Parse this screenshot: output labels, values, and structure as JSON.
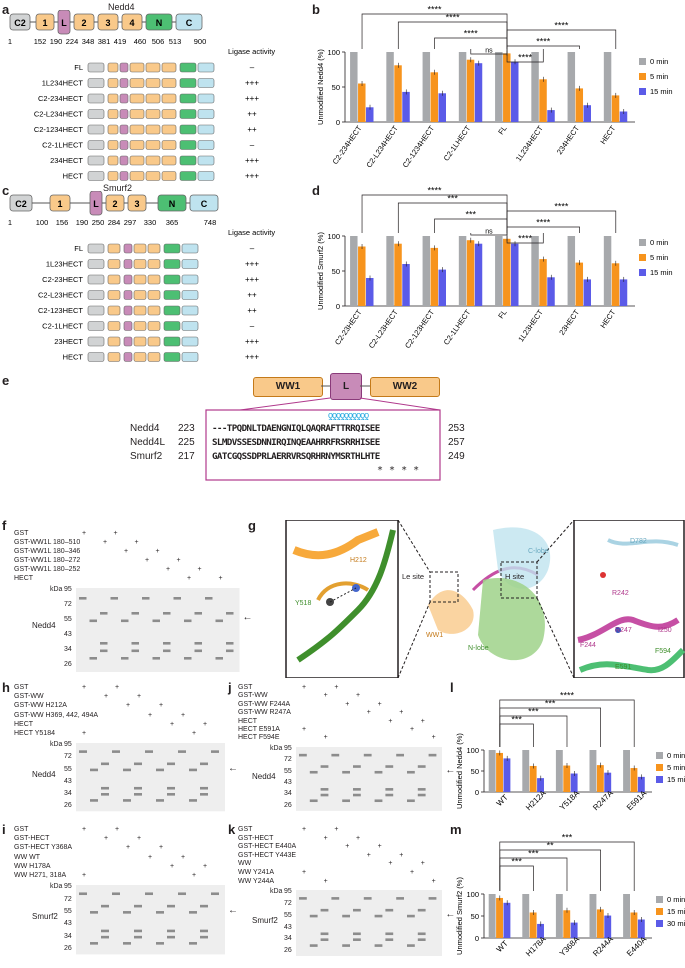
{
  "panels": {
    "a": {
      "letter": "a",
      "title": "Nedd4",
      "domains": [
        "C2",
        "1",
        "L",
        "2",
        "3",
        "4",
        "N",
        "C"
      ],
      "ticks": [
        "1",
        "152",
        "190",
        "224",
        "348",
        "381",
        "419",
        "460",
        "506",
        "513",
        "900"
      ],
      "activity_header": "Ligase activity",
      "constructs": [
        {
          "name": "FL",
          "activity": "–"
        },
        {
          "name": "1L234HECT",
          "activity": "+++"
        },
        {
          "name": "C2-234HECT",
          "activity": "+++"
        },
        {
          "name": "C2-L234HECT",
          "activity": "++"
        },
        {
          "name": "C2-1234HECT",
          "activity": "++"
        },
        {
          "name": "C2-1LHECT",
          "activity": "–"
        },
        {
          "name": "234HECT",
          "activity": "+++"
        },
        {
          "name": "HECT",
          "activity": "+++"
        }
      ]
    },
    "c": {
      "letter": "c",
      "title": "Smurf2",
      "domains": [
        "C2",
        "1",
        "L",
        "2",
        "3",
        "N",
        "C"
      ],
      "ticks": [
        "1",
        "100",
        "156",
        "190",
        "250",
        "284",
        "297",
        "330",
        "365",
        "748"
      ],
      "activity_header": "Ligase activity",
      "constructs": [
        {
          "name": "FL",
          "activity": "–"
        },
        {
          "name": "1L23HECT",
          "activity": "+++"
        },
        {
          "name": "C2-23HECT",
          "activity": "+++"
        },
        {
          "name": "C2-L23HECT",
          "activity": "++"
        },
        {
          "name": "C2-123HECT",
          "activity": "++"
        },
        {
          "name": "C2-1LHECT",
          "activity": "–"
        },
        {
          "name": "23HECT",
          "activity": "+++"
        },
        {
          "name": "HECT",
          "activity": "+++"
        }
      ]
    },
    "e": {
      "letter": "e",
      "domains": [
        "WW1",
        "L",
        "WW2"
      ],
      "rows": [
        {
          "protein": "Nedd4",
          "start": "223",
          "seq": "---TPQDNLTDAENGNIQLQAQRAFTTRRQISEE",
          "end": "253"
        },
        {
          "protein": "Nedd4L",
          "start": "225",
          "seq": "SLMDVSSESDNNIRQINQEAAHRRFRSRRHISEE",
          "end": "257"
        },
        {
          "protein": "Smurf2",
          "start": "217",
          "seq": "GATCGQSSDPRLAERRVRSQRHRNYMSRTHLHTE",
          "end": "249"
        }
      ],
      "stars": "*   *   *   *",
      "helix": "ƍƍƍƍƍƍƍƍƍƍ"
    },
    "f": {
      "letter": "f",
      "rows": [
        "GST",
        "GST-WW1L 180–510",
        "GST-WW1L 180–346",
        "GST-WW1L 180–272",
        "GST-WW1L 180–252",
        "HECT"
      ],
      "plus": [
        "+",
        "+",
        "+",
        "+",
        "+",
        "+",
        "+",
        "+",
        "+",
        "+",
        "+",
        "+",
        "+",
        "+",
        "+",
        "+",
        "+",
        "+",
        "+",
        "+",
        "+",
        "+",
        "+",
        "+",
        "+",
        "+",
        "+",
        "+",
        "+",
        "+"
      ],
      "kda_label": "kDa",
      "markers": [
        "95",
        "72",
        "55",
        "43",
        "34",
        "26"
      ],
      "gel_label": "Nedd4"
    },
    "g": {
      "letter": "g",
      "labels": [
        "Le site",
        "H site",
        "C-lobe",
        "N-lobe",
        "WW1",
        "H212",
        "Y518",
        "D782",
        "R242",
        "R247",
        "F244",
        "I250",
        "F594",
        "E591"
      ]
    },
    "h": {
      "letter": "h",
      "rows": [
        "GST",
        "GST-WW",
        "GST-WW H212A",
        "GST-WW H369, 442, 494A",
        "HECT",
        "HECT Y5184"
      ],
      "kda_label": "kDa",
      "markers": [
        "95",
        "72",
        "55",
        "43",
        "34",
        "26"
      ],
      "gel_label": "Nedd4"
    },
    "i": {
      "letter": "i",
      "rows": [
        "GST",
        "GST-HECT",
        "GST-HECT Y368A",
        "WW WT",
        "WW H178A",
        "WW H271, 318A"
      ],
      "kda_label": "kDa",
      "markers": [
        "95",
        "72",
        "55",
        "43",
        "34",
        "26"
      ],
      "gel_label": "Smurf2"
    },
    "j": {
      "letter": "j",
      "rows": [
        "GST",
        "GST-WW",
        "GST-WW F244A",
        "GST-WW R247A",
        "HECT",
        "HECT E591A",
        "HECT F594E"
      ],
      "kda_label": "kDa",
      "markers": [
        "95",
        "72",
        "55",
        "43",
        "34",
        "26"
      ],
      "gel_label": "Nedd4"
    },
    "k": {
      "letter": "k",
      "rows": [
        "GST",
        "GST-HECT",
        "GST-HECT E440A",
        "GST-HECT Y443E",
        "WW",
        "WW Y241A",
        "WW Y244A"
      ],
      "kda_label": "kDa",
      "markers": [
        "95",
        "72",
        "55",
        "43",
        "34",
        "26"
      ],
      "gel_label": "Smurf2"
    },
    "b": {
      "letter": "b"
    },
    "d": {
      "letter": "d"
    },
    "l": {
      "letter": "l"
    },
    "m": {
      "letter": "m"
    }
  },
  "colors": {
    "gray": "#a7a9ac",
    "orange": "#f7941d",
    "blue": "#5b5be8",
    "c2": "#d1d3d4",
    "ww": "#f9c98a",
    "l": "#c88bb8",
    "n": "#4dbf73",
    "c": "#bfe3ef"
  },
  "chart_data": [
    {
      "id": "b",
      "type": "bar",
      "ylabel": "Unmodified Nedd4 (%)",
      "ylim": [
        0,
        100
      ],
      "yticks": [
        "0",
        "50",
        "100"
      ],
      "categories": [
        "C2-234HECT",
        "C2-L234HECT",
        "C2-1234HECT",
        "C2-1LHECT",
        "FL",
        "1L234HECT",
        "234HECT",
        "HECT"
      ],
      "series": [
        {
          "name": "0 min",
          "color": "#a7a9ac",
          "values": [
            100,
            100,
            100,
            100,
            100,
            100,
            100,
            100
          ]
        },
        {
          "name": "5 min",
          "color": "#f7941d",
          "values": [
            55,
            81,
            71,
            89,
            98,
            61,
            48,
            38
          ]
        },
        {
          "name": "15 min",
          "color": "#5b5be8",
          "values": [
            21,
            43,
            41,
            84,
            86,
            17,
            24,
            15
          ]
        }
      ],
      "significance": [
        "****",
        "****",
        "****",
        "ns",
        "****",
        "****",
        "****"
      ]
    },
    {
      "id": "d",
      "type": "bar",
      "ylabel": "Unmodified Smurf2 (%)",
      "ylim": [
        0,
        100
      ],
      "yticks": [
        "0",
        "50",
        "100"
      ],
      "categories": [
        "C2-23HECT",
        "C2-L23HECT",
        "C2-123HECT",
        "C2-1LHECT",
        "FL",
        "1L23HECT",
        "23HECT",
        "HECT"
      ],
      "series": [
        {
          "name": "0 min",
          "color": "#a7a9ac",
          "values": [
            100,
            100,
            100,
            100,
            100,
            100,
            100,
            100
          ]
        },
        {
          "name": "5 min",
          "color": "#f7941d",
          "values": [
            85,
            89,
            83,
            94,
            96,
            67,
            62,
            61
          ]
        },
        {
          "name": "15 min",
          "color": "#5b5be8",
          "values": [
            40,
            60,
            52,
            89,
            89,
            41,
            38,
            38
          ]
        }
      ],
      "significance": [
        "****",
        "***",
        "***",
        "ns",
        "****",
        "****",
        "****"
      ]
    },
    {
      "id": "l",
      "type": "bar",
      "ylabel": "Unmodified Nedd4 (%)",
      "ylim": [
        0,
        100
      ],
      "yticks": [
        "0",
        "50",
        "100"
      ],
      "categories": [
        "WT",
        "H212A",
        "Y518A",
        "R247A",
        "E591A"
      ],
      "series": [
        {
          "name": "0 min",
          "color": "#a7a9ac",
          "values": [
            100,
            100,
            100,
            100,
            100
          ]
        },
        {
          "name": "5 min",
          "color": "#f7941d",
          "values": [
            93,
            62,
            63,
            64,
            57
          ]
        },
        {
          "name": "15 min",
          "color": "#5b5be8",
          "values": [
            80,
            33,
            44,
            46,
            36
          ]
        }
      ],
      "significance": [
        "***",
        "***",
        "***",
        "****"
      ]
    },
    {
      "id": "m",
      "type": "bar",
      "ylabel": "Unmodified Smurf2 (%)",
      "ylim": [
        0,
        100
      ],
      "yticks": [
        "0",
        "50",
        "100"
      ],
      "categories": [
        "WT",
        "H178A",
        "Y368A",
        "R244A",
        "E440A"
      ],
      "series": [
        {
          "name": "0 min",
          "color": "#a7a9ac",
          "values": [
            100,
            100,
            100,
            100,
            100
          ]
        },
        {
          "name": "15 min",
          "color": "#f7941d",
          "values": [
            91,
            58,
            63,
            65,
            58
          ]
        },
        {
          "name": "30 min",
          "color": "#5b5be8",
          "values": [
            80,
            32,
            35,
            51,
            42
          ]
        }
      ],
      "significance": [
        "***",
        "***",
        "**",
        "***"
      ]
    }
  ]
}
